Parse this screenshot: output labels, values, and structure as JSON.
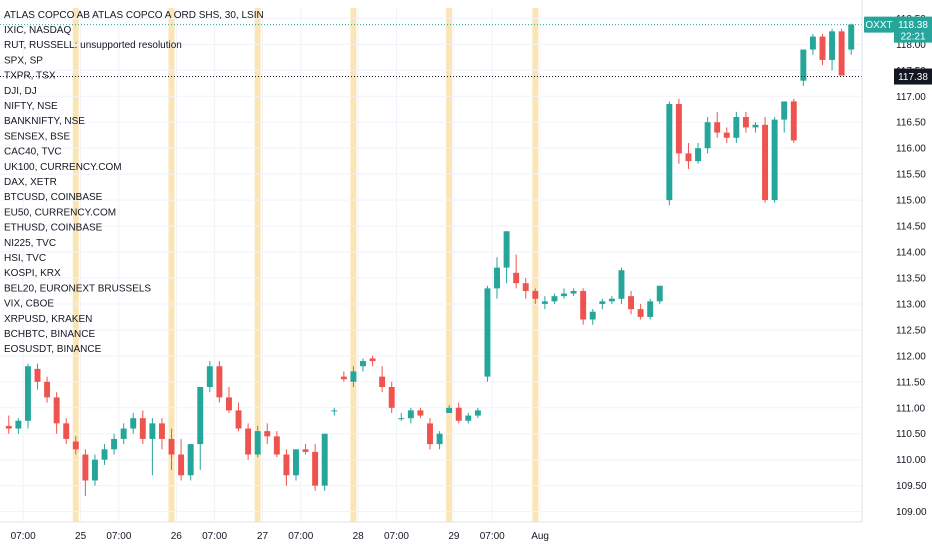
{
  "chart_data": {
    "type": "candlestick",
    "title": "ATLAS COPCO AB ATLAS COPCO A ORD SHS, 30, LSIN",
    "symbols": [
      "IXIC, NASDAQ",
      "RUT, RUSSELL: unsupported resolution",
      "SPX, SP",
      "TXPR, TSX",
      "DJI, DJ",
      "NIFTY, NSE",
      "BANKNIFTY, NSE",
      "SENSEX, BSE",
      "CAC40, TVC",
      "UK100, CURRENCY.COM",
      "DAX, XETR",
      "BTCUSD, COINBASE",
      "EU50, CURRENCY.COM",
      "ETHUSD, COINBASE",
      "NI225, TVC",
      "HSI, TVC",
      "KOSPI, KRX",
      "BEL20, EURONEXT BRUSSELS",
      "VIX, CBOE",
      "XRPUSD, KRAKEN",
      "BCHBTC, BINANCE",
      "EOSUSDT, BINANCE"
    ],
    "ylim": [
      108.8,
      118.7
    ],
    "y_ticks": [
      "109.00",
      "109.50",
      "110.00",
      "110.50",
      "111.00",
      "111.50",
      "112.00",
      "112.50",
      "113.00",
      "113.50",
      "114.00",
      "114.50",
      "115.00",
      "115.50",
      "116.00",
      "116.50",
      "117.00",
      "117.50",
      "118.00",
      "118.50"
    ],
    "x_ticks": [
      {
        "label": "07:00",
        "bar": 1.5
      },
      {
        "label": "25",
        "bar": 7.5
      },
      {
        "label": "07:00",
        "bar": 11.5
      },
      {
        "label": "26",
        "bar": 17.5
      },
      {
        "label": "07:00",
        "bar": 21.5
      },
      {
        "label": "27",
        "bar": 26.5
      },
      {
        "label": "07:00",
        "bar": 30.5
      },
      {
        "label": "28",
        "bar": 36.5
      },
      {
        "label": "07:00",
        "bar": 40.5
      },
      {
        "label": "29",
        "bar": 46.5
      },
      {
        "label": "07:00",
        "bar": 50.5
      },
      {
        "label": "Aug",
        "bar": 55.5
      }
    ],
    "session_breaks": [
      7.5,
      17.5,
      26.5,
      36.5,
      46.5,
      55.5
    ],
    "ohlc": [
      [
        110.65,
        110.85,
        110.5,
        110.6
      ],
      [
        110.6,
        110.8,
        110.5,
        110.75
      ],
      [
        110.75,
        111.85,
        110.6,
        111.8
      ],
      [
        111.75,
        111.85,
        111.35,
        111.5
      ],
      [
        111.5,
        111.6,
        111.1,
        111.2
      ],
      [
        111.2,
        111.3,
        110.5,
        110.7
      ],
      [
        110.7,
        110.8,
        110.3,
        110.4
      ],
      [
        110.35,
        110.45,
        110.1,
        110.2
      ],
      [
        110.1,
        110.2,
        109.3,
        109.6
      ],
      [
        109.6,
        110.1,
        109.5,
        110.0
      ],
      [
        110.0,
        110.3,
        109.9,
        110.2
      ],
      [
        110.2,
        110.5,
        110.1,
        110.4
      ],
      [
        110.4,
        110.7,
        110.3,
        110.6
      ],
      [
        110.6,
        110.9,
        110.5,
        110.8
      ],
      [
        110.8,
        110.95,
        110.3,
        110.4
      ],
      [
        110.4,
        110.8,
        109.7,
        110.7
      ],
      [
        110.7,
        110.8,
        110.2,
        110.4
      ],
      [
        110.4,
        110.6,
        109.8,
        110.1
      ],
      [
        110.1,
        110.4,
        109.6,
        109.7
      ],
      [
        109.7,
        110.3,
        109.6,
        110.3
      ],
      [
        110.3,
        111.4,
        109.8,
        111.4
      ],
      [
        111.4,
        111.9,
        111.3,
        111.8
      ],
      [
        111.8,
        111.9,
        111.1,
        111.2
      ],
      [
        111.2,
        111.4,
        110.9,
        110.95
      ],
      [
        110.95,
        111.1,
        110.55,
        110.6
      ],
      [
        110.6,
        110.7,
        110.0,
        110.1
      ],
      [
        110.1,
        110.65,
        110.05,
        110.55
      ],
      [
        110.55,
        110.7,
        110.3,
        110.45
      ],
      [
        110.45,
        110.55,
        110.05,
        110.1
      ],
      [
        110.1,
        110.2,
        109.5,
        109.7
      ],
      [
        109.7,
        110.2,
        109.6,
        110.2
      ],
      [
        110.2,
        110.3,
        110.1,
        110.15
      ],
      [
        110.15,
        110.3,
        109.4,
        109.5
      ],
      [
        109.5,
        110.5,
        109.4,
        110.5
      ],
      [
        110.95,
        111.0,
        110.85,
        110.95
      ],
      [
        111.6,
        111.7,
        111.5,
        111.55
      ],
      [
        111.5,
        111.8,
        111.4,
        111.7
      ],
      [
        111.8,
        111.95,
        111.7,
        111.9
      ],
      [
        111.95,
        112.0,
        111.8,
        111.9
      ],
      [
        111.6,
        111.8,
        111.3,
        111.4
      ],
      [
        111.4,
        111.5,
        110.9,
        111.0
      ],
      [
        110.8,
        110.9,
        110.75,
        110.8
      ],
      [
        110.8,
        111.0,
        110.7,
        110.95
      ],
      [
        110.95,
        111.0,
        110.8,
        110.85
      ],
      [
        110.7,
        110.8,
        110.2,
        110.3
      ],
      [
        110.3,
        110.55,
        110.2,
        110.5
      ],
      [
        110.9,
        111.05,
        110.9,
        111.0
      ],
      [
        111.0,
        111.1,
        110.7,
        110.75
      ],
      [
        110.75,
        110.9,
        110.7,
        110.85
      ],
      [
        110.85,
        111.0,
        110.8,
        110.95
      ],
      [
        111.6,
        113.35,
        111.5,
        113.3
      ],
      [
        113.3,
        113.9,
        113.1,
        113.7
      ],
      [
        113.7,
        114.4,
        113.4,
        114.4
      ],
      [
        113.6,
        113.95,
        113.3,
        113.4
      ],
      [
        113.4,
        113.5,
        113.1,
        113.25
      ],
      [
        113.25,
        113.3,
        113.0,
        113.1
      ],
      [
        113.0,
        113.15,
        112.9,
        113.05
      ],
      [
        113.05,
        113.2,
        113.0,
        113.15
      ],
      [
        113.15,
        113.3,
        113.1,
        113.2
      ],
      [
        113.2,
        113.3,
        113.15,
        113.25
      ],
      [
        113.25,
        113.3,
        112.6,
        112.7
      ],
      [
        112.7,
        112.9,
        112.6,
        112.85
      ],
      [
        113.0,
        113.1,
        112.9,
        113.05
      ],
      [
        113.05,
        113.15,
        113.0,
        113.1
      ],
      [
        113.1,
        113.7,
        113.0,
        113.65
      ],
      [
        113.15,
        113.25,
        112.8,
        112.9
      ],
      [
        112.9,
        113.0,
        112.7,
        112.75
      ],
      [
        112.75,
        113.1,
        112.7,
        113.05
      ],
      [
        113.05,
        113.35,
        113.0,
        113.35
      ],
      [
        115.0,
        116.9,
        114.9,
        116.85
      ],
      [
        116.85,
        116.95,
        115.7,
        115.9
      ],
      [
        115.9,
        116.1,
        115.6,
        115.75
      ],
      [
        115.75,
        116.1,
        115.7,
        116.0
      ],
      [
        116.0,
        116.6,
        115.9,
        116.5
      ],
      [
        116.5,
        116.7,
        116.2,
        116.3
      ],
      [
        116.3,
        116.4,
        116.1,
        116.2
      ],
      [
        116.2,
        116.7,
        116.1,
        116.6
      ],
      [
        116.6,
        116.7,
        116.3,
        116.4
      ],
      [
        116.4,
        116.5,
        116.3,
        116.45
      ],
      [
        116.45,
        116.6,
        114.95,
        115.0
      ],
      [
        115.0,
        116.6,
        114.95,
        116.55
      ],
      [
        116.55,
        116.9,
        116.3,
        116.9
      ],
      [
        116.9,
        116.95,
        116.1,
        116.15
      ],
      [
        117.3,
        117.9,
        117.2,
        117.9
      ],
      [
        117.9,
        118.2,
        117.8,
        118.15
      ],
      [
        118.15,
        118.2,
        117.6,
        117.7
      ],
      [
        117.7,
        118.3,
        117.5,
        118.25
      ],
      [
        118.25,
        118.3,
        117.4,
        117.4
      ],
      [
        117.9,
        118.4,
        117.8,
        118.38
      ]
    ],
    "last_price": {
      "symbol": "OXXT",
      "value": "118.38",
      "countdown": "22:21"
    },
    "ref_price": {
      "value": "117.38"
    },
    "colors": {
      "up": "#26a69a",
      "down": "#ef5350",
      "session": "#fbe5b6",
      "tag": "#26a69a",
      "ref": "#131722",
      "grid": "#f0f3fa",
      "text": "#131722"
    },
    "grid": true
  }
}
